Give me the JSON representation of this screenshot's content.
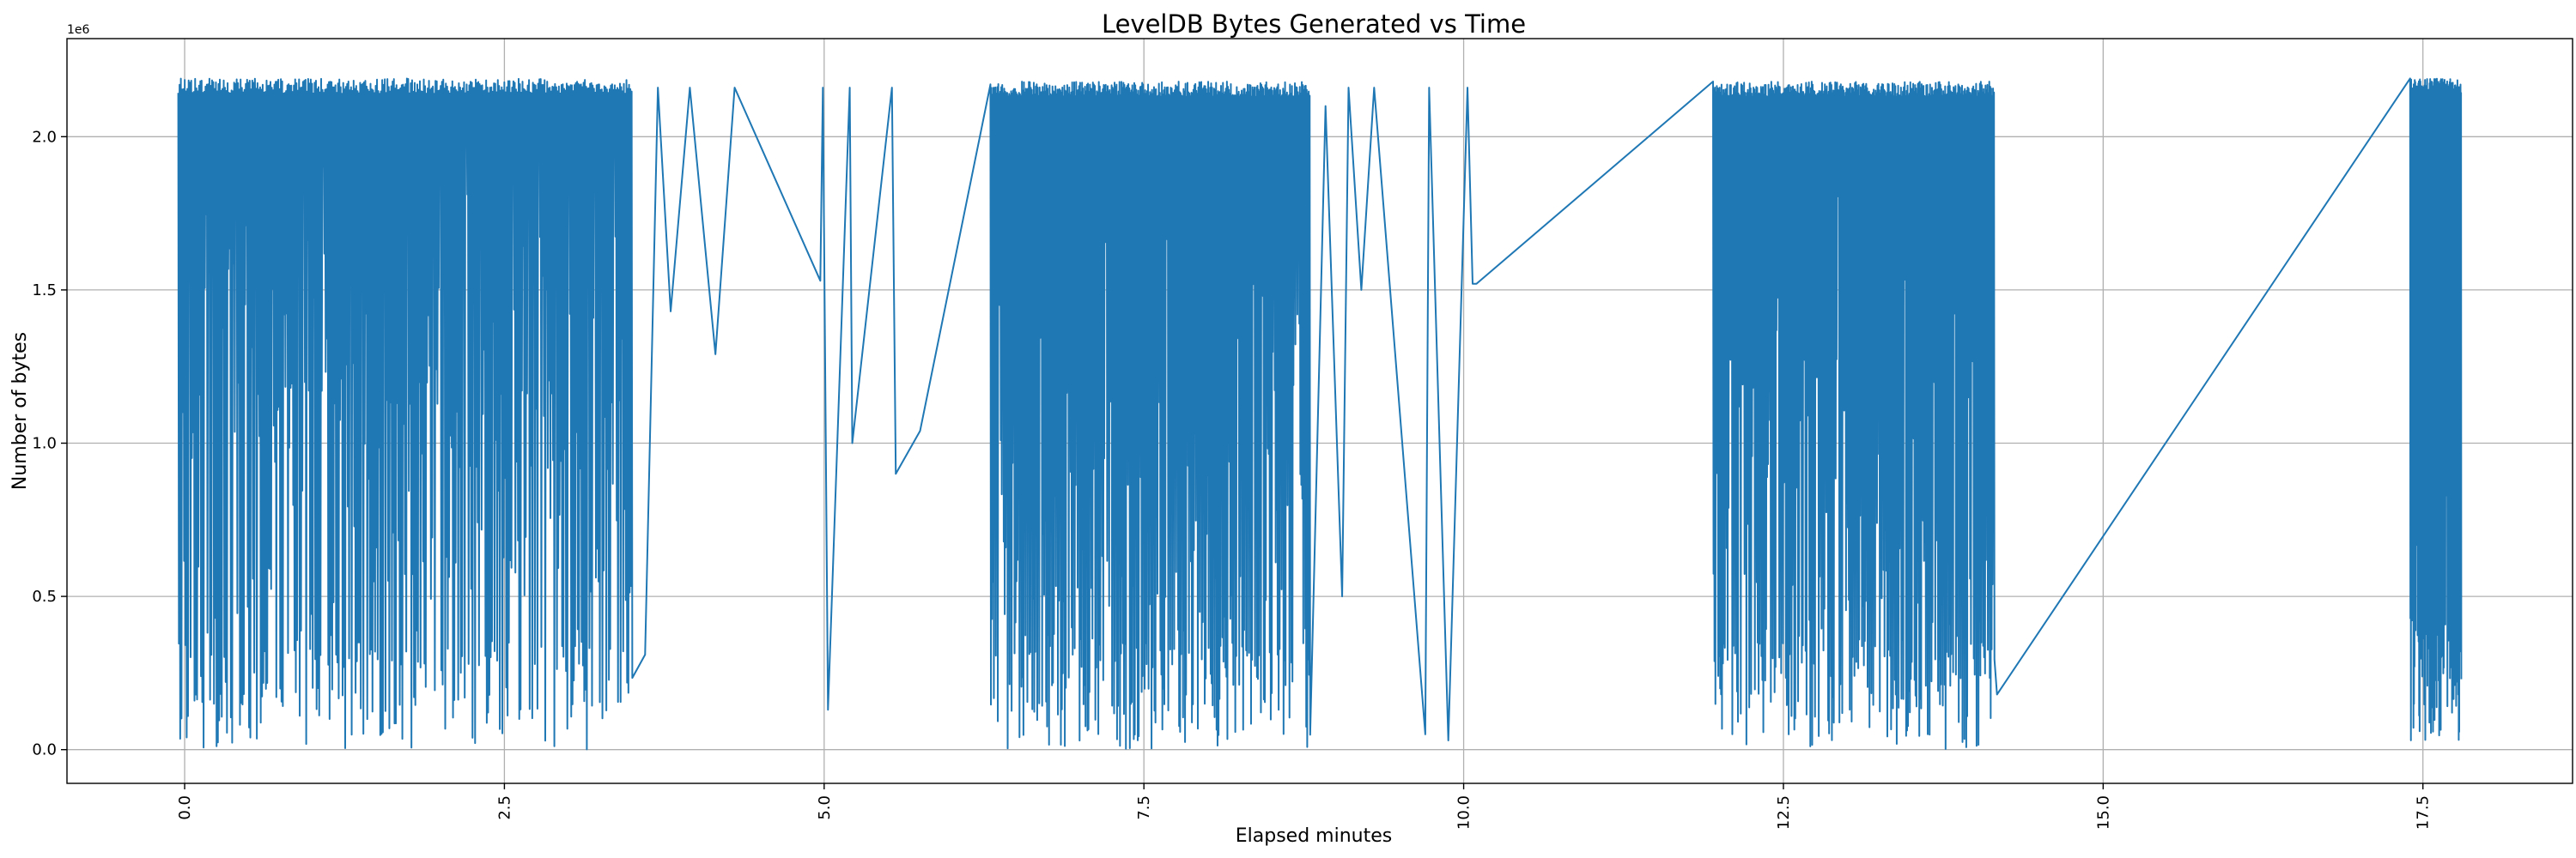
{
  "chart_data": {
    "type": "line",
    "title": "LevelDB Bytes Generated vs Time",
    "xlabel": "Elapsed minutes",
    "ylabel": "Number of bytes",
    "y_offset_label": "1e6",
    "xlim": [
      -0.92,
      18.67
    ],
    "ylim": [
      -0.11,
      2.32
    ],
    "y_scale_multiplier": 1000000,
    "grid": true,
    "line_color": "#1f77b4",
    "x_ticks": [
      0.0,
      2.5,
      5.0,
      7.5,
      10.0,
      12.5,
      15.0,
      17.5
    ],
    "x_tick_labels": [
      "0.0",
      "2.5",
      "5.0",
      "7.5",
      "10.0",
      "12.5",
      "15.0",
      "17.5"
    ],
    "y_ticks": [
      0.0,
      0.5,
      1.0,
      1.5,
      2.0
    ],
    "y_tick_labels": [
      "0.0",
      "0.5",
      "1.0",
      "1.5",
      "2.0"
    ],
    "dense_bursts": [
      {
        "x_start": -0.05,
        "x_end": 3.5,
        "y_min": 0.0,
        "y_max": 2.19,
        "approx_points": 700
      },
      {
        "x_start": 6.3,
        "x_end": 8.8,
        "y_min": 0.0,
        "y_max": 2.18,
        "approx_points": 650
      },
      {
        "x_start": 11.95,
        "x_end": 14.15,
        "y_min": 0.0,
        "y_max": 2.18,
        "approx_points": 600
      },
      {
        "x_start": 17.4,
        "x_end": 17.8,
        "y_min": 0.03,
        "y_max": 2.19,
        "approx_points": 200
      }
    ],
    "sparse_points": {
      "x": [
        3.5,
        3.6,
        3.7,
        3.8,
        3.95,
        4.15,
        4.3,
        4.97,
        4.99,
        5.03,
        5.2,
        5.22,
        5.53,
        5.56,
        5.75,
        6.3,
        8.8,
        8.92,
        9.05,
        9.1,
        9.2,
        9.3,
        9.7,
        9.73,
        9.88,
        10.03,
        10.07,
        10.1,
        11.95,
        14.15,
        14.17,
        17.4
      ]
    },
    "sparse_values": {
      "y": [
        2.16,
        0.31,
        2.16,
        1.43,
        2.16,
        1.29,
        2.16,
        1.53,
        2.16,
        0.13,
        2.16,
        1.0,
        2.16,
        0.9,
        1.04,
        2.17,
        2.16,
        2.1,
        0.5,
        2.16,
        1.5,
        2.16,
        0.05,
        2.16,
        0.03,
        2.16,
        1.52,
        1.52,
        2.18,
        0.18,
        0.18,
        2.19
      ]
    }
  }
}
